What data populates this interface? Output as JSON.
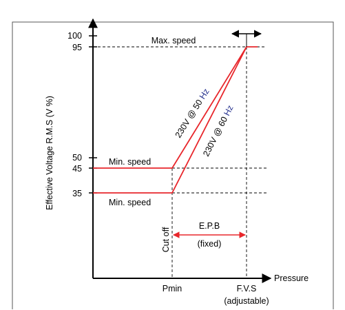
{
  "y_axis": {
    "label": "Effective Voltage R.M.S (V %)",
    "ticks": [
      "100",
      "95",
      "50",
      "45",
      "35"
    ]
  },
  "x_axis": {
    "label": "Pressure",
    "pmin_label": "Pmin",
    "fvs_label": "F.V.S",
    "fvs_sublabel": "(adjustable)"
  },
  "annotations": {
    "max_speed": "Max. speed",
    "min_speed_upper": "Min. speed",
    "min_speed_lower": "Min. speed",
    "cut_off": "Cut off",
    "epb": "E.P.B",
    "epb_note": "(fixed)"
  },
  "curves": {
    "hz50": {
      "prefix": "230V @ 50 ",
      "unit": "Hz"
    },
    "hz60": {
      "prefix": "230V @ 60 ",
      "unit": "Hz"
    }
  },
  "colors": {
    "curve": "#e8262b",
    "hz_unit": "#2a3590",
    "axis": "#000000"
  },
  "icons": {
    "adjust_arrow": "double-headed-horizontal-arrow"
  }
}
